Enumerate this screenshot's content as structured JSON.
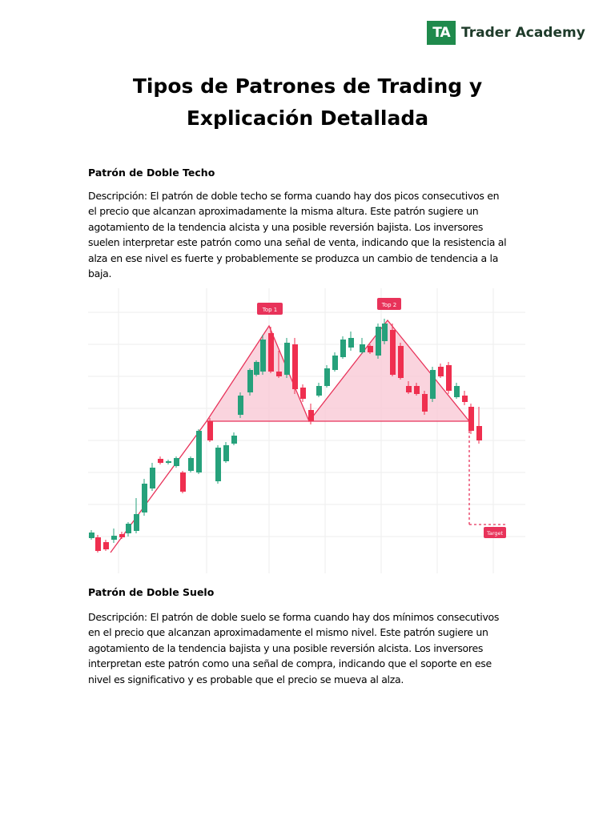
{
  "logo": {
    "mark": "TA",
    "name": "Trader Academy",
    "brand_color": "#1f8a4c"
  },
  "title_lines": [
    "Tipos de Patrones de Trading y",
    "Explicación Detallada"
  ],
  "section1": {
    "heading": "Patrón de Doble Techo",
    "lines": [
      "Descripción: El patrón de doble techo se forma cuando hay dos picos consecutivos en",
      "el precio que alcanzan aproximadamente la misma altura. Este patrón sugiere un",
      "agotamiento de la tendencia alcista y una posible reversión bajista. Los inversores",
      "suelen interpretar este patrón como una señal de venta, indicando que la resistencia al",
      "alza en ese nivel es fuerte y probablemente se produzca un cambio de tendencia a la",
      "baja."
    ]
  },
  "chart": {
    "labels": {
      "top1": "Top 1",
      "top2": "Top 2",
      "target": "Target"
    },
    "colors": {
      "up": "#26a17b",
      "down": "#ef2f4f",
      "pattern": "#e8335a",
      "fill": "#f9c9d6"
    }
  },
  "section2": {
    "heading": "Patrón de Doble Suelo",
    "lines": [
      "Descripción: El patrón de doble suelo se forma cuando hay dos mínimos consecutivos",
      "en el precio que alcanzan aproximadamente el mismo nivel. Este patrón sugiere un",
      "agotamiento de la tendencia bajista y una posible reversión alcista. Los inversores",
      "interpretan este patrón como una señal de compra, indicando que el soporte en ese",
      "nivel es significativo y es probable que el precio se mueva al alza."
    ]
  }
}
